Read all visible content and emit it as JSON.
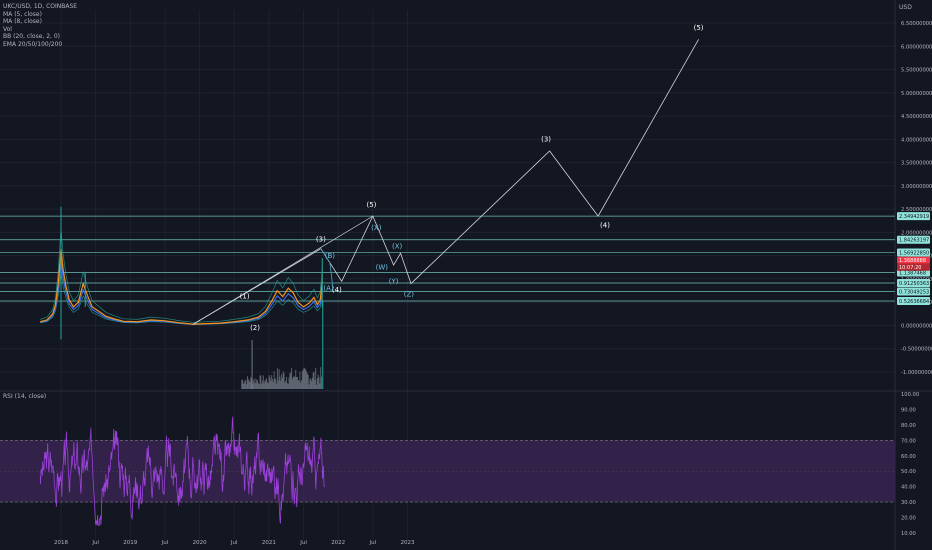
{
  "header": {
    "symbol": "UKC/USD, 1D, COINBASE",
    "currency": "USD"
  },
  "indicators": [
    "MA (5, close)",
    "MA (8, close)",
    "Vol",
    "BB (20, close, 2, 0)",
    "EMA 20/50/100/200"
  ],
  "rsi_label": "RSI (14, close)",
  "colors": {
    "background": "#131722",
    "grid": "#1e222d",
    "price_line": "#f7931a",
    "ma_line": "#3d6ef0",
    "bb_line": "#26a69a",
    "wave_line": "#d1d4dc",
    "level_line": "#7fdbd4",
    "level_label_bg": "#8fe3da",
    "current_price_bg": "#f23645",
    "rsi_line": "#9a41d8",
    "rsi_band": "#3b2454"
  },
  "chart_data": [
    {
      "type": "line",
      "title": "",
      "x_axis_ticks": [
        "2018",
        "Jul",
        "2019",
        "Jul",
        "2020",
        "Jul",
        "2021",
        "Jul",
        "2022",
        "Jul",
        "2023"
      ],
      "y_axis_ticks": [
        "6.50000000",
        "6.00000000",
        "5.50000000",
        "5.00000000",
        "4.50000000",
        "4.00000000",
        "3.50000000",
        "3.00000000",
        "2.50000000",
        "2.00000000",
        "1.50000000",
        "1.00000000",
        "0.50000000",
        "0.00000000",
        "-0.50000000",
        "-1.00000000"
      ],
      "ylim": [
        -1.0,
        6.5
      ],
      "scale": "linear",
      "horizontal_levels": [
        {
          "label": "2.34942919",
          "value": 2.3494
        },
        {
          "label": "1.84263197",
          "value": 1.8426
        },
        {
          "label": "1.56922850",
          "value": 1.5692
        },
        {
          "label": "1.1387468",
          "value": 1.1387
        },
        {
          "label": "0.91250363",
          "value": 0.9125
        },
        {
          "label": "0.73049253",
          "value": 0.7305
        },
        {
          "label": "0.52636684",
          "value": 0.5264
        }
      ],
      "current_price": {
        "label": "1.3688888",
        "countdown": "10:07:20",
        "value": 1.3689
      },
      "wave_labels": [
        {
          "label": "(1)",
          "x": 2020.65,
          "y": 0.58
        },
        {
          "label": "(2)",
          "x": 2020.8,
          "y": -0.1
        },
        {
          "label": "(3)",
          "x": 2021.75,
          "y": 1.8
        },
        {
          "label": "(4)",
          "x": 2021.98,
          "y": 0.72
        },
        {
          "label": "(5)",
          "x": 2022.48,
          "y": 2.55
        },
        {
          "label": "(B)",
          "x": 2021.88,
          "y": 1.45
        },
        {
          "label": "(A)",
          "x": 2021.86,
          "y": 0.75
        },
        {
          "label": "(X)",
          "x": 2022.55,
          "y": 2.05
        },
        {
          "label": "(W)",
          "x": 2022.63,
          "y": 1.2
        },
        {
          "label": "(X)",
          "x": 2022.85,
          "y": 1.65
        },
        {
          "label": "(Y)",
          "x": 2022.8,
          "y": 0.9
        },
        {
          "label": "(Z)",
          "x": 2023.02,
          "y": 0.62
        },
        {
          "label": "(3)",
          "x": 2025.0,
          "y": 3.95
        },
        {
          "label": "(4)",
          "x": 2025.85,
          "y": 2.1
        },
        {
          "label": "(5)",
          "x": 2027.2,
          "y": 6.35
        }
      ],
      "projection_path": [
        {
          "x": 2019.9,
          "y": 0.02
        },
        {
          "x": 2021.75,
          "y": 1.65
        },
        {
          "x": 2022.05,
          "y": 0.95
        },
        {
          "x": 2022.5,
          "y": 2.35
        },
        {
          "x": 2022.8,
          "y": 1.3
        },
        {
          "x": 2022.9,
          "y": 1.55
        },
        {
          "x": 2023.05,
          "y": 0.9
        },
        {
          "x": 2025.05,
          "y": 3.75
        },
        {
          "x": 2025.75,
          "y": 2.35
        },
        {
          "x": 2027.2,
          "y": 6.15
        }
      ],
      "trend_line": [
        {
          "x": 2019.9,
          "y": 0.02
        },
        {
          "x": 2022.5,
          "y": 2.35
        }
      ],
      "price_series": [
        {
          "x": 2017.7,
          "y": 0.08
        },
        {
          "x": 2017.8,
          "y": 0.12
        },
        {
          "x": 2017.88,
          "y": 0.25
        },
        {
          "x": 2017.92,
          "y": 0.45
        },
        {
          "x": 2017.96,
          "y": 0.9
        },
        {
          "x": 2018.0,
          "y": 1.65
        },
        {
          "x": 2018.03,
          "y": 1.2
        },
        {
          "x": 2018.07,
          "y": 0.85
        },
        {
          "x": 2018.12,
          "y": 0.55
        },
        {
          "x": 2018.18,
          "y": 0.4
        },
        {
          "x": 2018.25,
          "y": 0.5
        },
        {
          "x": 2018.32,
          "y": 0.9
        },
        {
          "x": 2018.38,
          "y": 0.65
        },
        {
          "x": 2018.45,
          "y": 0.4
        },
        {
          "x": 2018.55,
          "y": 0.3
        },
        {
          "x": 2018.65,
          "y": 0.2
        },
        {
          "x": 2018.75,
          "y": 0.15
        },
        {
          "x": 2018.9,
          "y": 0.09
        },
        {
          "x": 2019.1,
          "y": 0.08
        },
        {
          "x": 2019.3,
          "y": 0.12
        },
        {
          "x": 2019.5,
          "y": 0.1
        },
        {
          "x": 2019.7,
          "y": 0.06
        },
        {
          "x": 2019.9,
          "y": 0.03
        },
        {
          "x": 2020.1,
          "y": 0.04
        },
        {
          "x": 2020.3,
          "y": 0.05
        },
        {
          "x": 2020.5,
          "y": 0.08
        },
        {
          "x": 2020.7,
          "y": 0.12
        },
        {
          "x": 2020.85,
          "y": 0.18
        },
        {
          "x": 2020.95,
          "y": 0.3
        },
        {
          "x": 2021.05,
          "y": 0.55
        },
        {
          "x": 2021.12,
          "y": 0.75
        },
        {
          "x": 2021.2,
          "y": 0.62
        },
        {
          "x": 2021.28,
          "y": 0.8
        },
        {
          "x": 2021.35,
          "y": 0.7
        },
        {
          "x": 2021.42,
          "y": 0.5
        },
        {
          "x": 2021.5,
          "y": 0.4
        },
        {
          "x": 2021.58,
          "y": 0.48
        },
        {
          "x": 2021.65,
          "y": 0.6
        },
        {
          "x": 2021.7,
          "y": 0.45
        },
        {
          "x": 2021.74,
          "y": 0.55
        },
        {
          "x": 2021.77,
          "y": 0.95
        }
      ],
      "spikes": [
        {
          "x": 2018.0,
          "high": 2.55,
          "low": -0.3
        },
        {
          "x": 2018.35,
          "high": 1.15,
          "low": 0.4
        },
        {
          "x": 2021.77,
          "high": 1.45,
          "low": 0.4
        }
      ]
    },
    {
      "type": "line",
      "title": "RSI (14, close)",
      "y_axis_ticks": [
        "100.00",
        "90.00",
        "80.00",
        "70.00",
        "60.00",
        "50.00",
        "40.00",
        "30.00",
        "20.00",
        "10.00"
      ],
      "ylim": [
        10,
        100
      ],
      "bands": [
        30,
        70
      ],
      "x_range": [
        2017.7,
        2021.8
      ]
    }
  ]
}
